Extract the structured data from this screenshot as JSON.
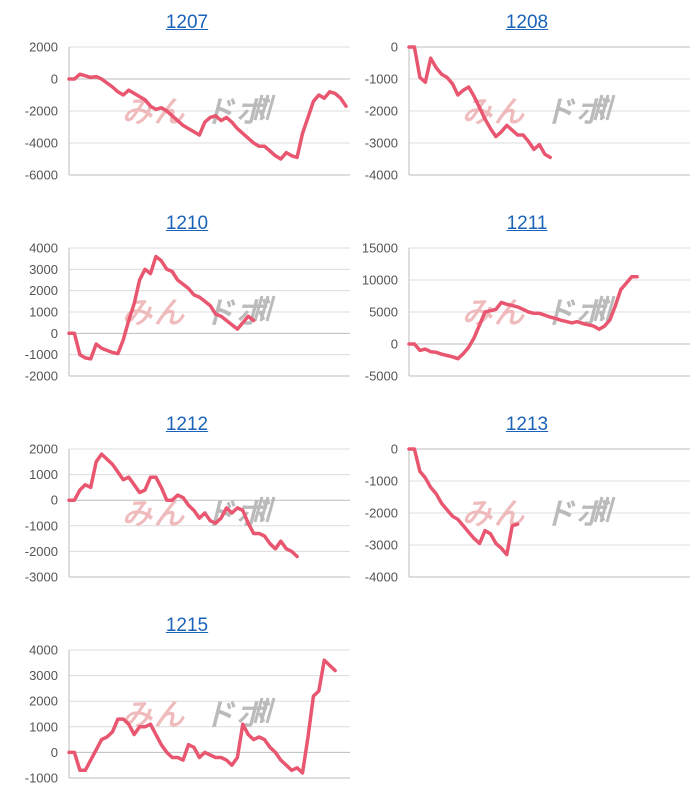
{
  "series_color": "#e8566f",
  "grid_color": "#dcdcdc",
  "axis_color": "#bdbdbd",
  "title_color": "#1a63b8",
  "watermark": {
    "part1": "みん",
    "part2": "ドボ",
    "color1": "#eeb4b6",
    "color2": "#b4b4b4"
  },
  "chart_data": [
    {
      "title": "1207",
      "type": "line",
      "yticks": [
        "2000",
        "0",
        "-2000",
        "-4000",
        "-6000"
      ],
      "ylim": [
        -6000,
        2000
      ],
      "values": [
        0,
        0,
        300,
        200,
        100,
        150,
        0,
        -250,
        -500,
        -800,
        -1000,
        -700,
        -900,
        -1100,
        -1300,
        -1700,
        -1900,
        -1800,
        -2000,
        -2300,
        -2600,
        -2900,
        -3100,
        -3300,
        -3500,
        -2700,
        -2400,
        -2300,
        -2600,
        -2400,
        -2700,
        -3100,
        -3400,
        -3700,
        -4000,
        -4200,
        -4200,
        -4500,
        -4800,
        -5000,
        -4600,
        -4800,
        -4900,
        -3400,
        -2400,
        -1400,
        -1000,
        -1200,
        -800,
        -900,
        -1200,
        -1700
      ]
    },
    {
      "title": "1208",
      "type": "line",
      "yticks": [
        "0",
        "-1000",
        "-2000",
        "-3000",
        "-4000"
      ],
      "ylim": [
        -4000,
        0
      ],
      "values": [
        0,
        0,
        -950,
        -1100,
        -350,
        -650,
        -850,
        -950,
        -1150,
        -1500,
        -1350,
        -1250,
        -1550,
        -1900,
        -2250,
        -2550,
        -2800,
        -2650,
        -2450,
        -2600,
        -2750,
        -2750,
        -2950,
        -3200,
        -3050,
        -3350,
        -3450
      ]
    },
    {
      "title": "1210",
      "type": "line",
      "yticks": [
        "4000",
        "3000",
        "2000",
        "1000",
        "0",
        "-1000",
        "-2000"
      ],
      "ylim": [
        -2000,
        4000
      ],
      "values": [
        0,
        0,
        -1000,
        -1150,
        -1200,
        -500,
        -700,
        -800,
        -900,
        -950,
        -300,
        600,
        1400,
        2500,
        3000,
        2800,
        3600,
        3400,
        3000,
        2900,
        2500,
        2300,
        2100,
        1800,
        1700,
        1500,
        1300,
        900,
        800,
        600,
        400,
        200,
        500,
        800,
        600
      ]
    },
    {
      "title": "1211",
      "type": "line",
      "yticks": [
        "15000",
        "10000",
        "5000",
        "0",
        "-5000"
      ],
      "ylim": [
        -5000,
        15000
      ],
      "values": [
        0,
        0,
        -1000,
        -800,
        -1200,
        -1300,
        -1600,
        -1800,
        -2000,
        -2300,
        -1500,
        -500,
        1000,
        3000,
        5000,
        5200,
        5400,
        6500,
        6200,
        6000,
        5800,
        5400,
        5000,
        4800,
        4800,
        4500,
        4200,
        4000,
        3700,
        3500,
        3300,
        3500,
        3200,
        3000,
        2800,
        2300,
        2800,
        3800,
        6000,
        8500,
        9500,
        10500,
        10500
      ]
    },
    {
      "title": "1212",
      "type": "line",
      "yticks": [
        "2000",
        "1000",
        "0",
        "-1000",
        "-2000",
        "-3000"
      ],
      "ylim": [
        -3000,
        2000
      ],
      "values": [
        0,
        0,
        400,
        600,
        500,
        1500,
        1800,
        1600,
        1400,
        1100,
        800,
        900,
        600,
        300,
        400,
        900,
        900,
        500,
        0,
        0,
        200,
        100,
        -200,
        -400,
        -700,
        -500,
        -800,
        -900,
        -700,
        -300,
        -500,
        -300,
        -400,
        -900,
        -1300,
        -1300,
        -1400,
        -1700,
        -1900,
        -1600,
        -1900,
        -2000,
        -2200
      ]
    },
    {
      "title": "1213",
      "type": "line",
      "yticks": [
        "0",
        "-1000",
        "-2000",
        "-3000",
        "-4000"
      ],
      "ylim": [
        -4000,
        0
      ],
      "values": [
        0,
        0,
        -700,
        -900,
        -1200,
        -1400,
        -1700,
        -1900,
        -2100,
        -2200,
        -2400,
        -2600,
        -2800,
        -2950,
        -2550,
        -2650,
        -2950,
        -3100,
        -3300,
        -2400,
        -2350
      ]
    },
    {
      "title": "1215",
      "type": "line",
      "yticks": [
        "4000",
        "3000",
        "2000",
        "1000",
        "0",
        "-1000"
      ],
      "ylim": [
        -1000,
        4000
      ],
      "values": [
        0,
        0,
        -700,
        -700,
        -300,
        100,
        500,
        600,
        800,
        1300,
        1300,
        1100,
        700,
        1000,
        1000,
        1100,
        700,
        300,
        0,
        -200,
        -200,
        -300,
        300,
        200,
        -200,
        0,
        -100,
        -200,
        -200,
        -300,
        -500,
        -200,
        1100,
        700,
        500,
        600,
        500,
        200,
        0,
        -300,
        -500,
        -700,
        -600,
        -800,
        600,
        2200,
        2400,
        3600,
        3400,
        3200
      ]
    }
  ]
}
